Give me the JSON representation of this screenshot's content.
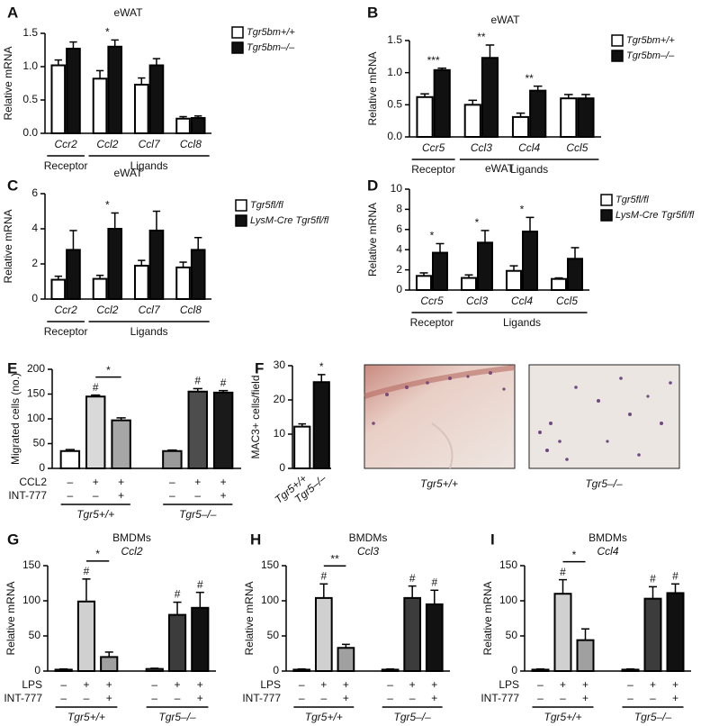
{
  "chart_data": [
    {
      "type": "bar",
      "label": "A",
      "title": "eWAT",
      "ylabel": "Relative mRNA",
      "categories": [
        "Ccr2",
        "Ccl2",
        "Ccl7",
        "Ccl8"
      ],
      "series": [
        {
          "name": "Tgr5bm+/+",
          "color": "#ffffff",
          "values": [
            1.02,
            0.82,
            0.73,
            0.22
          ],
          "errors": [
            0.08,
            0.12,
            0.1,
            0.03
          ]
        },
        {
          "name": "Tgr5bm–/–",
          "color": "#111111",
          "values": [
            1.27,
            1.3,
            1.02,
            0.23
          ],
          "errors": [
            0.1,
            0.1,
            0.1,
            0.03
          ]
        }
      ],
      "annotations": [
        null,
        "*",
        null,
        null
      ],
      "groups": [
        {
          "label": "Receptor",
          "span": [
            0,
            0
          ]
        },
        {
          "label": "Ligands",
          "span": [
            1,
            3
          ]
        }
      ],
      "ylim": [
        0,
        1.5
      ],
      "yticks": [
        {
          "value": 0,
          "label": "0.0"
        },
        0.5,
        {
          "value": 1,
          "label": "1.0"
        },
        1.5
      ]
    },
    {
      "type": "bar",
      "label": "B",
      "title": "eWAT",
      "ylabel": "Relative mRNA",
      "categories": [
        "Ccr5",
        "Ccl3",
        "Ccl4",
        "Ccl5"
      ],
      "series": [
        {
          "name": "Tgr5bm+/+",
          "color": "#ffffff",
          "values": [
            0.62,
            0.5,
            0.31,
            0.6
          ],
          "errors": [
            0.05,
            0.07,
            0.06,
            0.06
          ]
        },
        {
          "name": "Tgr5bm–/–",
          "color": "#111111",
          "values": [
            1.04,
            1.23,
            0.72,
            0.6
          ],
          "errors": [
            0.03,
            0.2,
            0.07,
            0.06
          ]
        }
      ],
      "annotations": [
        "***",
        "**",
        "**",
        null
      ],
      "groups": [
        {
          "label": "Receptor",
          "span": [
            0,
            0
          ]
        },
        {
          "label": "Ligands",
          "span": [
            1,
            3
          ]
        }
      ],
      "ylim": [
        0,
        1.5
      ],
      "yticks": [
        {
          "value": 0,
          "label": "0.0"
        },
        0.5,
        {
          "value": 1,
          "label": "1.0"
        },
        1.5
      ]
    },
    {
      "type": "bar",
      "label": "C",
      "title": "eWAT",
      "ylabel": "Relative mRNA",
      "categories": [
        "Ccr2",
        "Ccl2",
        "Ccl7",
        "Ccl8"
      ],
      "series": [
        {
          "name": "Tgr5fl/fl",
          "color": "#ffffff",
          "values": [
            1.1,
            1.15,
            1.9,
            1.8
          ],
          "errors": [
            0.2,
            0.2,
            0.3,
            0.3
          ]
        },
        {
          "name": "LysM-Cre Tgr5fl/fl",
          "color": "#111111",
          "values": [
            2.8,
            4.0,
            3.9,
            2.8
          ],
          "errors": [
            1.1,
            0.9,
            1.1,
            0.7
          ]
        }
      ],
      "annotations": [
        null,
        "*",
        null,
        null
      ],
      "groups": [
        {
          "label": "Receptor",
          "span": [
            0,
            0
          ]
        },
        {
          "label": "Ligands",
          "span": [
            1,
            3
          ]
        }
      ],
      "ylim": [
        0,
        6
      ],
      "yticks": [
        0,
        2,
        4,
        6
      ]
    },
    {
      "type": "bar",
      "label": "D",
      "title": "eWAT",
      "ylabel": "Relative mRNA",
      "categories": [
        "Ccr5",
        "Ccl3",
        "Ccl4",
        "Ccl5"
      ],
      "series": [
        {
          "name": "Tgr5fl/fl",
          "color": "#ffffff",
          "values": [
            1.4,
            1.2,
            1.9,
            1.1
          ],
          "errors": [
            0.3,
            0.3,
            0.5,
            0.1
          ]
        },
        {
          "name": "LysM-Cre Tgr5fl/fl",
          "color": "#111111",
          "values": [
            3.7,
            4.7,
            5.8,
            3.1
          ],
          "errors": [
            0.9,
            1.2,
            1.4,
            1.1
          ]
        }
      ],
      "annotations": [
        "*",
        "*",
        "*",
        null
      ],
      "groups": [
        {
          "label": "Receptor",
          "span": [
            0,
            0
          ]
        },
        {
          "label": "Ligands",
          "span": [
            1,
            3
          ]
        }
      ],
      "ylim": [
        0,
        10
      ],
      "yticks": [
        0,
        2,
        4,
        6,
        8,
        10
      ]
    },
    {
      "type": "bar",
      "label": "E",
      "ylabel": "Migrated cells (no.)",
      "values": [
        35,
        145,
        97,
        35,
        155,
        153
      ],
      "errors": [
        3,
        3,
        5,
        2,
        6,
        4
      ],
      "colors": [
        "#ffffff",
        "#d9d9d9",
        "#a6a6a6",
        "#9a9a9a",
        "#4d4d4d",
        "#1a1a1a"
      ],
      "annotations": [
        null,
        "#",
        null,
        null,
        "#",
        "#"
      ],
      "significance": [
        {
          "text": "*",
          "bars": [
            1,
            2
          ]
        }
      ],
      "conditions": [
        {
          "name": "CCL2",
          "values": [
            "–",
            "+",
            "+",
            "–",
            "+",
            "+"
          ]
        },
        {
          "name": "INT-777",
          "values": [
            "–",
            "–",
            "+",
            "–",
            "–",
            "+"
          ]
        }
      ],
      "groups": [
        {
          "label": "Tgr5+/+",
          "span": [
            0,
            2
          ]
        },
        {
          "label": "Tgr5–/–",
          "span": [
            3,
            5
          ]
        }
      ],
      "ylim": [
        0,
        200
      ],
      "yticks": [
        0,
        50,
        100,
        150,
        200
      ]
    },
    {
      "type": "bar",
      "label": "F",
      "ylabel": "MAC3+ cells/field",
      "categories": [
        "Tgr5+/+",
        "Tgr5–/–"
      ],
      "values": [
        12.2,
        25.2
      ],
      "errors": [
        0.8,
        2.2
      ],
      "colors": [
        "#ffffff",
        "#111111"
      ],
      "annotations": [
        null,
        "*"
      ],
      "images": [
        {
          "caption": "Tgr5+/+"
        },
        {
          "caption": "Tgr5–/–"
        }
      ],
      "ylim": [
        0,
        30
      ],
      "yticks": [
        0,
        10,
        20,
        30
      ]
    },
    {
      "type": "bar",
      "label": "G",
      "title": "BMDMs",
      "subtitle": "Ccl2",
      "ylabel": "Relative mRNA",
      "values": [
        2,
        99,
        20,
        3,
        80,
        90
      ],
      "errors": [
        1,
        32,
        7,
        1,
        18,
        22
      ],
      "colors": [
        "#ffffff",
        "#d0d0d0",
        "#a0a0a0",
        "#808080",
        "#3c3c3c",
        "#111111"
      ],
      "annotations": [
        null,
        "#",
        null,
        null,
        "#",
        "#"
      ],
      "significance": [
        {
          "text": "*",
          "bars": [
            1,
            2
          ]
        }
      ],
      "conditions": [
        {
          "name": "LPS",
          "values": [
            "–",
            "+",
            "+",
            "–",
            "+",
            "+"
          ]
        },
        {
          "name": "INT-777",
          "values": [
            "–",
            "–",
            "+",
            "–",
            "–",
            "+"
          ]
        }
      ],
      "groups": [
        {
          "label": "Tgr5+/+",
          "span": [
            0,
            2
          ]
        },
        {
          "label": "Tgr5–/–",
          "span": [
            3,
            5
          ]
        }
      ],
      "ylim": [
        0,
        150
      ],
      "yticks": [
        0,
        50,
        100,
        150
      ]
    },
    {
      "type": "bar",
      "label": "H",
      "title": "BMDMs",
      "subtitle": "Ccl3",
      "ylabel": "Relative mRNA",
      "values": [
        2,
        104,
        33,
        2,
        104,
        95
      ],
      "errors": [
        1,
        20,
        5,
        1,
        17,
        20
      ],
      "colors": [
        "#ffffff",
        "#d0d0d0",
        "#a0a0a0",
        "#808080",
        "#3c3c3c",
        "#111111"
      ],
      "annotations": [
        null,
        "#",
        null,
        null,
        "#",
        "#"
      ],
      "significance": [
        {
          "text": "**",
          "bars": [
            1,
            2
          ]
        }
      ],
      "conditions": [
        {
          "name": "LPS",
          "values": [
            "–",
            "+",
            "+",
            "–",
            "+",
            "+"
          ]
        },
        {
          "name": "INT-777",
          "values": [
            "–",
            "–",
            "+",
            "–",
            "–",
            "+"
          ]
        }
      ],
      "groups": [
        {
          "label": "Tgr5+/+",
          "span": [
            0,
            2
          ]
        },
        {
          "label": "Tgr5–/–",
          "span": [
            3,
            5
          ]
        }
      ],
      "ylim": [
        0,
        150
      ],
      "yticks": [
        0,
        50,
        100,
        150
      ]
    },
    {
      "type": "bar",
      "label": "I",
      "title": "BMDMs",
      "subtitle": "Ccl4",
      "ylabel": "Relative mRNA",
      "values": [
        2,
        110,
        44,
        2,
        103,
        111
      ],
      "errors": [
        1,
        20,
        16,
        1,
        17,
        13
      ],
      "colors": [
        "#ffffff",
        "#d0d0d0",
        "#a0a0a0",
        "#808080",
        "#3c3c3c",
        "#111111"
      ],
      "annotations": [
        null,
        "#",
        null,
        null,
        "#",
        "#"
      ],
      "significance": [
        {
          "text": "*",
          "bars": [
            1,
            2
          ]
        }
      ],
      "conditions": [
        {
          "name": "LPS",
          "values": [
            "–",
            "+",
            "+",
            "–",
            "+",
            "+"
          ]
        },
        {
          "name": "INT-777",
          "values": [
            "–",
            "–",
            "+",
            "–",
            "–",
            "+"
          ]
        }
      ],
      "groups": [
        {
          "label": "Tgr5+/+",
          "span": [
            0,
            2
          ]
        },
        {
          "label": "Tgr5–/–",
          "span": [
            3,
            5
          ]
        }
      ],
      "ylim": [
        0,
        150
      ],
      "yticks": [
        0,
        50,
        100,
        150
      ]
    }
  ]
}
